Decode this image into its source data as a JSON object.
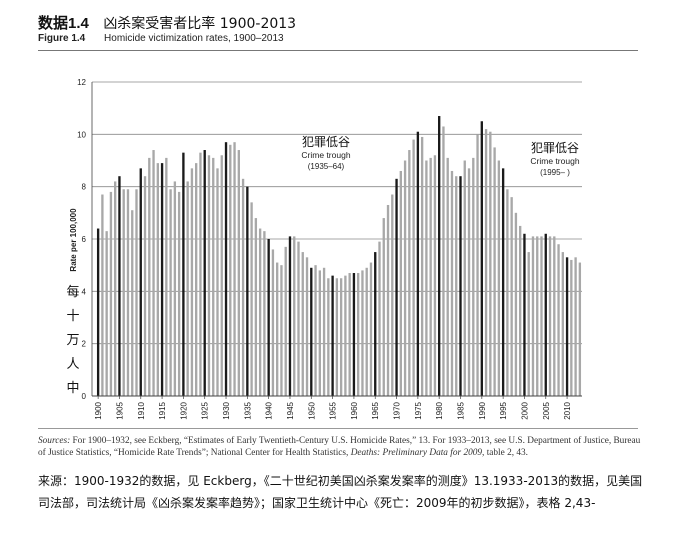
{
  "header": {
    "cn_label": "数据1.4",
    "cn_title": "凶杀案受害者比率 1900-2013",
    "en_label": "Figure 1.4",
    "en_title": "Homicide victimization rates, 1900–2013"
  },
  "chart_data": {
    "type": "bar",
    "title": "Homicide victimization rates, 1900–2013",
    "ylabel": "Rate per 100,000",
    "ylabel_cn_chars": [
      "每",
      "十",
      "万",
      "人",
      "中"
    ],
    "ylim": [
      0,
      12
    ],
    "yticks": [
      "0",
      "2",
      "4",
      "6",
      "8",
      "10",
      "12"
    ],
    "grid": true,
    "xlabels": [
      "1900",
      "1905",
      "1910",
      "1915",
      "1920",
      "1925",
      "1930",
      "1935",
      "1940",
      "1945",
      "1950",
      "1955",
      "1960",
      "1965",
      "1970",
      "1975",
      "1980",
      "1985",
      "1990",
      "1995",
      "2000",
      "2005",
      "2010"
    ],
    "years_first": 1900,
    "values": [
      6.4,
      7.7,
      6.3,
      7.8,
      8.2,
      8.4,
      7.9,
      7.9,
      7.1,
      7.9,
      8.7,
      8.4,
      9.1,
      9.4,
      8.9,
      8.9,
      9.1,
      7.9,
      8.2,
      7.8,
      9.3,
      8.2,
      8.7,
      8.9,
      9.3,
      9.4,
      9.2,
      9.1,
      8.7,
      9.2,
      9.7,
      9.6,
      9.7,
      9.4,
      8.3,
      8.0,
      7.4,
      6.8,
      6.4,
      6.3,
      6.0,
      5.6,
      5.1,
      5.0,
      5.7,
      6.1,
      6.1,
      5.9,
      5.5,
      5.3,
      4.9,
      5.0,
      4.8,
      4.9,
      4.5,
      4.6,
      4.5,
      4.5,
      4.6,
      4.7,
      4.7,
      4.7,
      4.8,
      4.9,
      5.1,
      5.5,
      5.9,
      6.8,
      7.3,
      7.7,
      8.3,
      8.6,
      9.0,
      9.4,
      9.8,
      10.1,
      9.9,
      9.0,
      9.1,
      9.2,
      10.7,
      10.3,
      9.1,
      8.6,
      8.4,
      8.4,
      9.0,
      8.7,
      9.1,
      10.0,
      10.5,
      10.2,
      10.1,
      9.5,
      9.0,
      8.7,
      7.9,
      7.6,
      7.0,
      6.5,
      6.2,
      5.5,
      6.1,
      6.1,
      6.1,
      6.2,
      6.1,
      6.1,
      5.8,
      5.5,
      5.3,
      5.2,
      5.3,
      5.1
    ],
    "highlight_every": 5,
    "annotations": [
      {
        "cn": "犯罪低谷",
        "en": "Crime trough",
        "range": "(1935–64)"
      },
      {
        "cn": "犯罪低谷",
        "en": "Crime trough",
        "range": "(1995– )"
      }
    ]
  },
  "sources": {
    "lead": "Sources:",
    "text": " For 1900–1932, see Eckberg, “Estimates of Early Twentieth-Century U.S. Homicide Rates,” 13. For 1933–2013, see U.S. Department of Justice, Bureau of Justice Statistics, “Homicide Rate Trends”; National Center for Health Statistics, ",
    "italic": "Deaths: Preliminary Data for 2009,",
    "tail": " table 2, 43."
  },
  "cn_source": "来源：1900-1932的数据，见 Eckberg，《二十世纪初美国凶杀案发案率的测度》13.1933-2013的数据，见美国司法部，司法统计局《凶杀案发案率趋势》；国家卫生统计中心《死亡：2009年的初步数据》，表格 2,43-"
}
